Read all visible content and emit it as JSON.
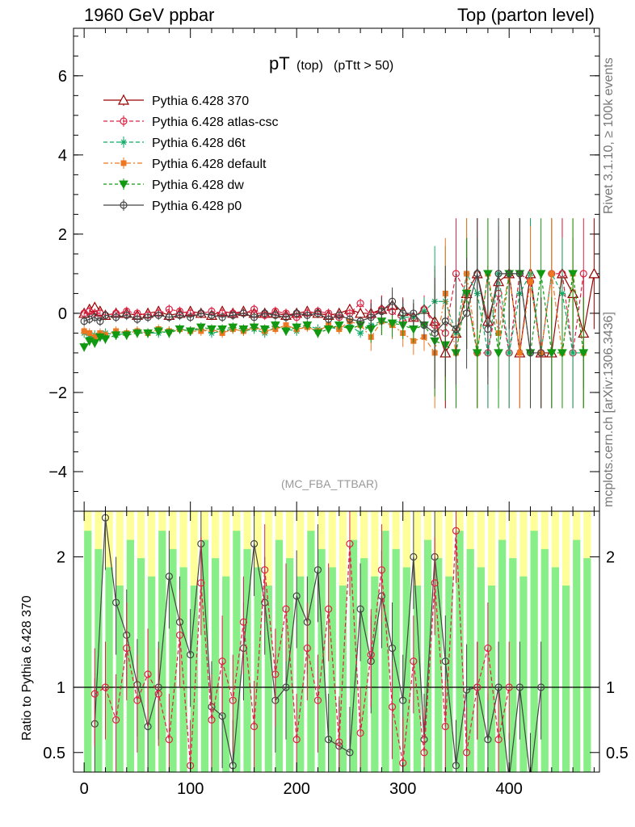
{
  "header": {
    "left": "1960 GeV ppbar",
    "right": "Top (parton level)",
    "side_top": "Rivet 3.1.10, ≥ 100k events",
    "side_bottom": "mcplots.cern.ch [arXiv:1306.3436]"
  },
  "chart_data": [
    {
      "type": "line",
      "title": "pT",
      "title_sub": "(top)",
      "title_cut": "(pTtt > 50)",
      "watermark": "(MC_FBA_TTBAR)",
      "xlim": [
        -10,
        485
      ],
      "ylim": [
        -5,
        7.2
      ],
      "yticks": [
        -4,
        -2,
        0,
        2,
        4,
        6
      ],
      "yticklabels": [
        "−4",
        "−2",
        "0",
        "2",
        "4",
        "6"
      ],
      "legend_position": "top-left",
      "series": [
        {
          "name": "Pythia 6.428 370",
          "color": "#990000",
          "marker": "triangle-open",
          "dash": "",
          "x": [
            0,
            5,
            10,
            15,
            20,
            30,
            40,
            50,
            60,
            70,
            80,
            90,
            100,
            110,
            120,
            130,
            140,
            150,
            160,
            170,
            180,
            190,
            200,
            210,
            220,
            230,
            240,
            250,
            260,
            270,
            280,
            290,
            300,
            310,
            320,
            330,
            340,
            350,
            360,
            370,
            380,
            390,
            400,
            410,
            420,
            430,
            440,
            450,
            460,
            470,
            480
          ],
          "y": [
            0,
            0.1,
            0.15,
            0.05,
            -0.05,
            0,
            0,
            -0.05,
            0,
            0.05,
            -0.05,
            0,
            0.05,
            0,
            -0.05,
            0.05,
            0,
            0.05,
            0,
            0,
            0,
            -0.05,
            0,
            0.05,
            0,
            -0.05,
            0,
            0.1,
            0,
            0,
            0.1,
            0.2,
            0.05,
            -0.1,
            0.1,
            -0.2,
            -1,
            -0.5,
            0.5,
            1,
            -0.2,
            0.8,
            1,
            -1,
            1,
            -1,
            -1,
            1,
            0.5,
            -0.5,
            1
          ]
        },
        {
          "name": "Pythia 6.428 atlas-csc",
          "color": "#dd2244",
          "marker": "circle-open",
          "dash": "5,3",
          "x": [
            0,
            5,
            10,
            15,
            20,
            30,
            40,
            50,
            60,
            70,
            80,
            90,
            100,
            110,
            120,
            130,
            140,
            150,
            160,
            170,
            180,
            190,
            200,
            210,
            220,
            230,
            240,
            250,
            260,
            270,
            280,
            290,
            300,
            310,
            320,
            330,
            340,
            350,
            360,
            370,
            380,
            390,
            400,
            410,
            420,
            430,
            440,
            450,
            460,
            470
          ],
          "y": [
            0,
            0.05,
            0,
            0,
            -0.05,
            0,
            0.05,
            0,
            -0.05,
            0,
            0.1,
            0.05,
            0,
            0,
            0.05,
            0,
            0,
            0,
            0.1,
            -0.05,
            0.05,
            0,
            -0.1,
            0,
            0.05,
            0,
            -0.1,
            0,
            0.25,
            -0.05,
            0.1,
            0.05,
            -0.2,
            -0.1,
            0.1,
            -0.3,
            -0.5,
            1,
            0.5,
            -1,
            -1,
            0.5,
            -1,
            1,
            0.8,
            -1,
            1,
            1,
            -1,
            1
          ]
        },
        {
          "name": "Pythia 6.428 d6t",
          "color": "#11aa66",
          "marker": "star",
          "dash": "5,3",
          "x": [
            0,
            5,
            10,
            15,
            20,
            30,
            40,
            50,
            60,
            70,
            80,
            90,
            100,
            110,
            120,
            130,
            140,
            150,
            160,
            170,
            180,
            190,
            200,
            210,
            220,
            230,
            240,
            250,
            260,
            270,
            280,
            290,
            300,
            310,
            320,
            330,
            340,
            350,
            360,
            370,
            380,
            390,
            400,
            410,
            420,
            430,
            440,
            450,
            460,
            470
          ],
          "y": [
            -0.5,
            -0.6,
            -0.55,
            -0.6,
            -0.5,
            -0.55,
            -0.5,
            -0.45,
            -0.5,
            -0.5,
            -0.45,
            -0.4,
            -0.45,
            -0.4,
            -0.5,
            -0.45,
            -0.4,
            -0.45,
            -0.4,
            -0.5,
            -0.35,
            -0.4,
            -0.45,
            -0.3,
            -0.4,
            -0.35,
            -0.4,
            -0.3,
            -0.5,
            -0.3,
            -0.2,
            -0.3,
            -0.1,
            -0.1,
            0.05,
            0.3,
            0.3,
            -0.5,
            1,
            0.5,
            -1,
            1,
            -1,
            0.5,
            1,
            -1,
            1,
            0.5,
            -1,
            -1
          ]
        },
        {
          "name": "Pythia 6.428 default",
          "color": "#ee7722",
          "marker": "square",
          "dash": "6,3,2,3",
          "x": [
            0,
            5,
            10,
            15,
            20,
            30,
            40,
            50,
            60,
            70,
            80,
            90,
            100,
            110,
            120,
            130,
            140,
            150,
            160,
            170,
            180,
            190,
            200,
            210,
            220,
            230,
            240,
            250,
            260,
            270,
            280,
            290,
            300,
            310,
            320,
            330,
            340,
            350,
            360,
            370,
            380,
            390,
            400,
            410,
            420,
            430,
            440,
            450,
            460,
            470
          ],
          "y": [
            -0.45,
            -0.5,
            -0.6,
            -0.5,
            -0.55,
            -0.45,
            -0.5,
            -0.45,
            -0.5,
            -0.4,
            -0.45,
            -0.4,
            -0.45,
            -0.45,
            -0.4,
            -0.5,
            -0.4,
            -0.45,
            -0.35,
            -0.45,
            -0.4,
            -0.3,
            -0.4,
            -0.35,
            -0.45,
            -0.3,
            -0.4,
            -0.2,
            -0.3,
            -0.6,
            -0.2,
            -0.3,
            -0.5,
            -0.7,
            -0.6,
            -1,
            0.5,
            -1,
            1,
            -1,
            1,
            -0.5,
            1,
            -1,
            0.8,
            -1,
            1,
            -1,
            1,
            -1
          ]
        },
        {
          "name": "Pythia 6.428 dw",
          "color": "#119911",
          "marker": "triangle-down",
          "dash": "4,3",
          "x": [
            0,
            5,
            10,
            15,
            20,
            30,
            40,
            50,
            60,
            70,
            80,
            90,
            100,
            110,
            120,
            130,
            140,
            150,
            160,
            170,
            180,
            190,
            200,
            210,
            220,
            230,
            240,
            250,
            260,
            270,
            280,
            290,
            300,
            310,
            320,
            330,
            340,
            350,
            360,
            370,
            380,
            390,
            400,
            410,
            420,
            430,
            440,
            450,
            460,
            470
          ],
          "y": [
            -0.85,
            -0.7,
            -0.75,
            -0.6,
            -0.65,
            -0.55,
            -0.55,
            -0.5,
            -0.5,
            -0.45,
            -0.5,
            -0.4,
            -0.45,
            -0.35,
            -0.4,
            -0.4,
            -0.35,
            -0.4,
            -0.35,
            -0.4,
            -0.3,
            -0.45,
            -0.35,
            -0.3,
            -0.5,
            -0.4,
            -0.3,
            -0.4,
            -0.3,
            -0.4,
            -0.2,
            -0.25,
            -0.3,
            -0.4,
            -0.3,
            -0.7,
            -0.8,
            -1,
            0.5,
            -1,
            1,
            -1,
            1,
            1,
            -1,
            1,
            -1,
            -1,
            1,
            -1
          ]
        },
        {
          "name": "Pythia 6.428 p0",
          "color": "#444444",
          "marker": "circle-open",
          "dash": "",
          "x": [
            0,
            5,
            10,
            15,
            20,
            30,
            40,
            50,
            60,
            70,
            80,
            90,
            100,
            110,
            120,
            130,
            140,
            150,
            160,
            170,
            180,
            190,
            200,
            210,
            220,
            230,
            240,
            250,
            260,
            270,
            280,
            290,
            300,
            310,
            320,
            330,
            340,
            350,
            360,
            370,
            380,
            390,
            400,
            410,
            420,
            430
          ],
          "y": [
            -0.2,
            -0.15,
            -0.1,
            -0.2,
            -0.05,
            -0.1,
            -0.05,
            -0.15,
            -0.1,
            -0.05,
            -0.1,
            -0.05,
            -0.1,
            0,
            -0.05,
            -0.1,
            -0.05,
            0,
            -0.1,
            0,
            -0.05,
            -0.1,
            0,
            -0.05,
            0,
            -0.15,
            -0.05,
            -0.15,
            -0.2,
            -0.1,
            0.05,
            0.3,
            0,
            0,
            -0.3,
            -0.5,
            -0.2,
            -0.4,
            0,
            1,
            -0.4,
            1,
            1,
            1,
            -1,
            -1
          ]
        }
      ]
    },
    {
      "type": "line",
      "ylabel": "Ratio to Pythia 6.428 370",
      "xlabel": "",
      "xlim": [
        -10,
        485
      ],
      "ylim": [
        0.35,
        2.35
      ],
      "yticks": [
        0.5,
        1,
        2
      ],
      "yticklabels": [
        "0.5",
        "1",
        "2"
      ],
      "xticks": [
        0,
        100,
        200,
        300,
        400
      ],
      "xticklabels": [
        "0",
        "100",
        "200",
        "300",
        "400"
      ],
      "reference_line": 1,
      "band_colors": {
        "outer": "#ffff99",
        "inner": "#88ee88"
      },
      "series": [
        {
          "name": "Pythia 6.428 p0",
          "color": "#444444",
          "x": [
            10,
            20,
            30,
            40,
            50,
            60,
            70,
            80,
            90,
            100,
            110,
            120,
            130,
            140,
            150,
            160,
            170,
            180,
            190,
            200,
            210,
            220,
            230,
            240,
            250,
            260,
            270,
            280,
            290,
            300,
            310,
            320,
            330,
            340,
            350,
            360,
            370,
            380,
            390,
            400,
            410,
            420,
            430
          ],
          "y": [
            0.72,
            2.3,
            1.65,
            1.4,
            1.02,
            0.7,
            1.0,
            1.85,
            1.5,
            1.25,
            2.1,
            0.85,
            0.78,
            0.4,
            1.3,
            2.1,
            1.65,
            0.9,
            1.0,
            1.7,
            1.5,
            1.9,
            0.6,
            0.55,
            0.5,
            1.6,
            1.2,
            1.7,
            1.3,
            0.9,
            2.0,
            0.6,
            2.0,
            1.2,
            0.4,
            0.98,
            1.0,
            0.6,
            1.0,
            0.3,
            1.0,
            0.3,
            1.0
          ]
        },
        {
          "name": "Pythia 6.428 atlas-csc",
          "color": "#dd2244",
          "x": [
            10,
            20,
            30,
            40,
            50,
            60,
            70,
            80,
            90,
            100,
            110,
            120,
            130,
            140,
            150,
            160,
            170,
            180,
            190,
            200,
            210,
            220,
            230,
            240,
            250,
            260,
            270,
            280,
            290,
            300,
            310,
            320,
            330,
            340,
            350,
            360,
            370,
            380,
            390,
            400
          ],
          "y": [
            0.95,
            1.0,
            0.75,
            1.3,
            0.9,
            1.1,
            0.95,
            0.6,
            1.4,
            0.4,
            1.8,
            0.75,
            1.2,
            0.9,
            1.5,
            0.7,
            1.9,
            1.1,
            1.6,
            0.6,
            1.3,
            0.9,
            1.6,
            0.58,
            2.1,
            0.65,
            1.25,
            1.9,
            0.85,
            0.42,
            1.2,
            0.5,
            1.8,
            0.7,
            2.2,
            0.5,
            1.0,
            1.3,
            0.6,
            1.0
          ]
        }
      ]
    }
  ]
}
